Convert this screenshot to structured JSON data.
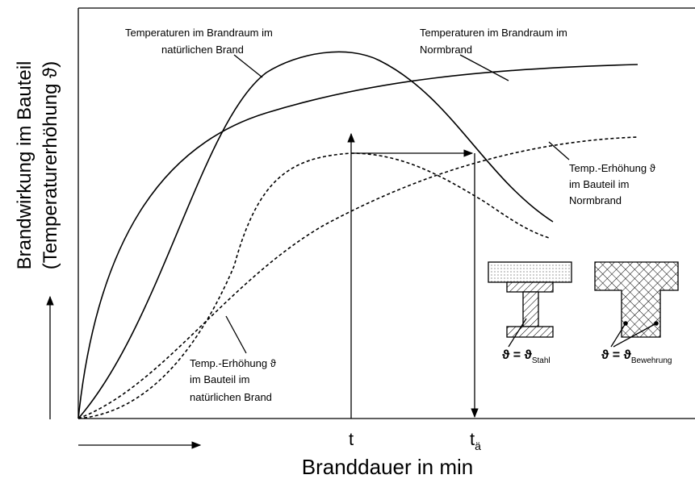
{
  "axes": {
    "y_label": [
      "Brandwirkung im Bauteil",
      "(Temperaturerhöhung ϑ)"
    ],
    "x_label": "Branddauer in min"
  },
  "markers": {
    "t": "t",
    "t_ae": {
      "main": "t",
      "sub": "ä"
    }
  },
  "annotations": {
    "natural_room": [
      "Temperaturen im Brandraum im",
      "natürlichen Brand"
    ],
    "norm_room": [
      "Temperaturen im Brandraum im",
      "Normbrand"
    ],
    "norm_component": [
      "Temp.-Erhöhung ϑ",
      "im Bauteil im",
      "Normbrand"
    ],
    "natural_component": [
      "Temp.-Erhöhung ϑ",
      "im Bauteil im",
      "natürlichen Brand"
    ]
  },
  "sections": {
    "steel": {
      "lhs": "ϑ = ϑ",
      "sub": "Stahl"
    },
    "concrete": {
      "lhs": "ϑ = ϑ",
      "sub": "Bewehrung"
    }
  }
}
